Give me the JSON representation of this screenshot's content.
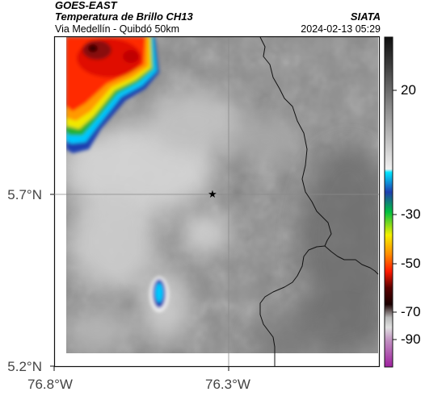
{
  "header": {
    "title": "GOES-EAST",
    "subtitle": "Temperatura de Brillo CH13",
    "route": "Via Medellín - Quibdó 50km",
    "org": "SIATA",
    "datetime": "2024-02-13 05:29"
  },
  "axes": {
    "lat_labels": [
      {
        "text": "5.7°N",
        "value": 5.7
      },
      {
        "text": "5.2°N",
        "value": 5.2
      }
    ],
    "lon_labels": [
      {
        "text": "76.8°W",
        "value": -76.8
      },
      {
        "text": "76.3°W",
        "value": -76.3
      }
    ]
  },
  "colorbar": {
    "ticks": [
      {
        "text": "20",
        "value": 20
      },
      {
        "text": "-30",
        "value": -30
      },
      {
        "text": "-50",
        "value": -50
      },
      {
        "text": "-70",
        "value": -70
      },
      {
        "text": "-90",
        "value": -90
      }
    ]
  },
  "marker": {
    "symbol": "★",
    "icon": "star-marker-icon"
  },
  "colors": {
    "gridline": "#8a8a8a",
    "border": "#111111",
    "cold_core": "#7a0b0b",
    "warm_gray": "#8c8c8c"
  }
}
